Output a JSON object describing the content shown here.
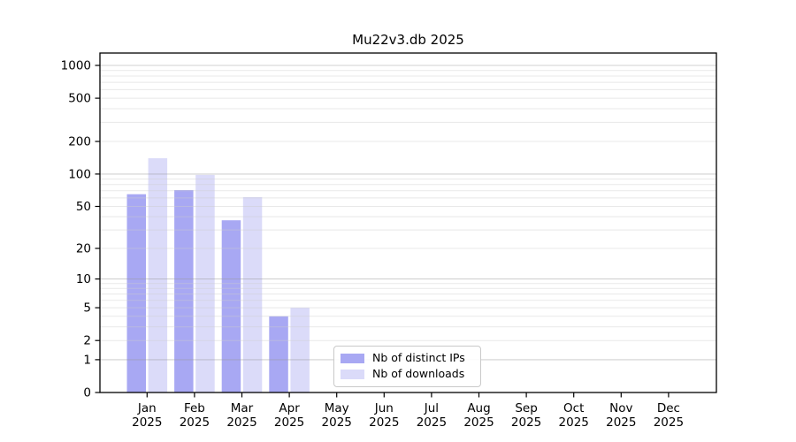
{
  "page": {
    "background_color": "#ffffff"
  },
  "chart_data": {
    "type": "bar",
    "title": "Mu22v3.db 2025",
    "categories": [
      "Jan",
      "Feb",
      "Mar",
      "Apr",
      "May",
      "Jun",
      "Jul",
      "Aug",
      "Sep",
      "Oct",
      "Nov",
      "Dec"
    ],
    "year_label": "2025",
    "series": [
      {
        "name": "Nb of distinct IPs",
        "color": "#a8a8f3",
        "values": [
          65,
          71,
          37,
          4,
          0,
          0,
          0,
          0,
          0,
          0,
          0,
          0
        ]
      },
      {
        "name": "Nb of downloads",
        "color": "#dbdbf9",
        "values": [
          140,
          98,
          61,
          5,
          0,
          0,
          0,
          0,
          0,
          0,
          0,
          0
        ]
      }
    ],
    "y_ticks": [
      0,
      1,
      2,
      5,
      10,
      20,
      50,
      100,
      200,
      500,
      1000
    ],
    "y_scale": "log1p",
    "ylim": [
      0,
      1300
    ],
    "xlabel": "",
    "ylabel": "",
    "grid": true,
    "legend_position": "lower-center-left",
    "axis_color": "#000000",
    "grid_major_color": "#999999",
    "grid_minor_color": "#cccccc"
  }
}
